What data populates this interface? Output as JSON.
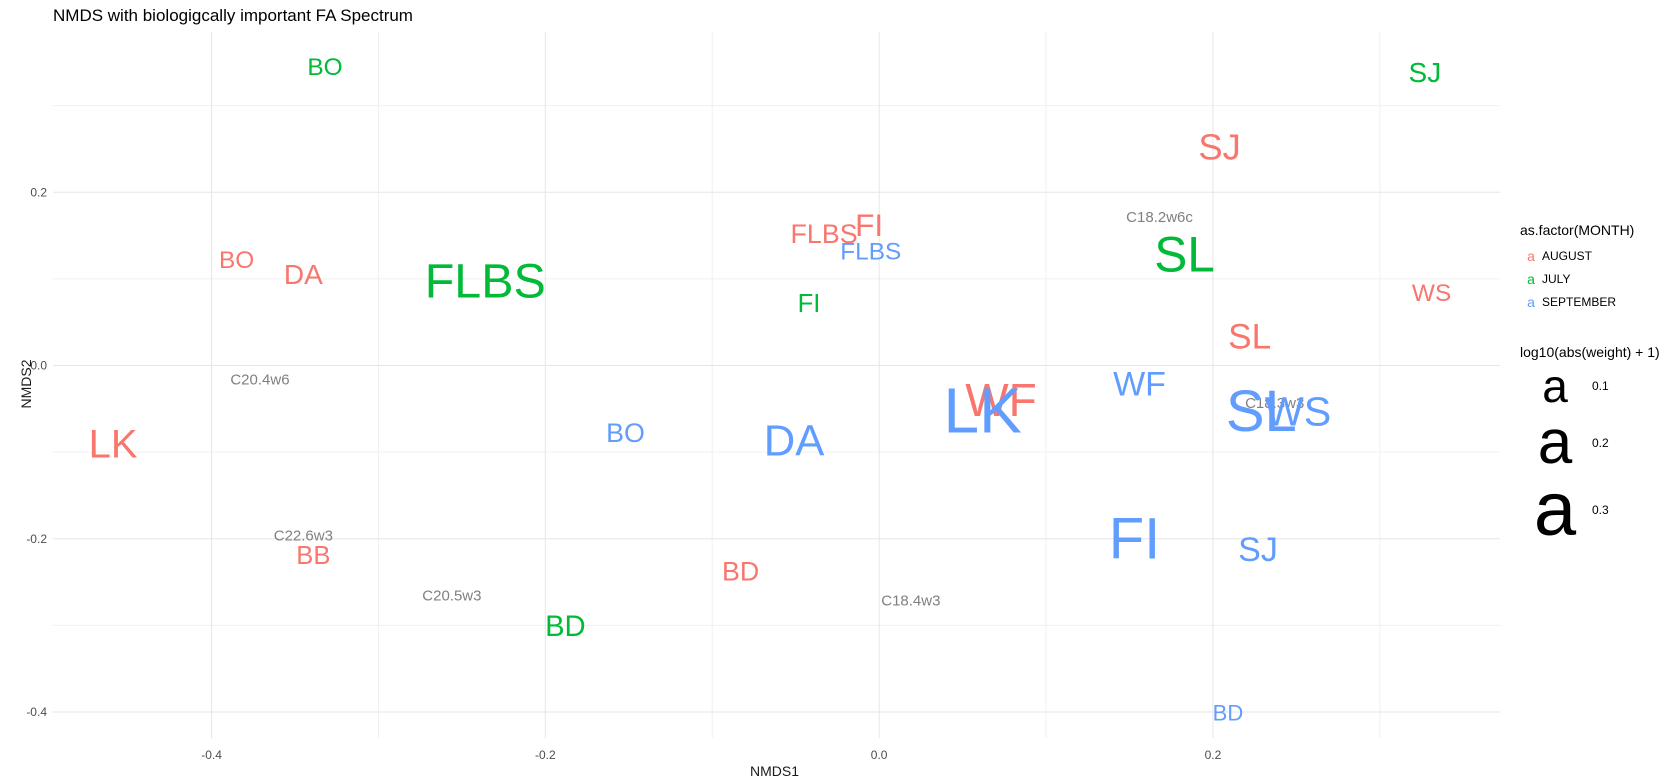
{
  "chart_data": {
    "type": "scatter",
    "title": "NMDS with biologigcally important FA Spectrum",
    "xlabel": "NMDS1",
    "ylabel": "NMDS2",
    "xlim": [
      -0.495,
      0.372
    ],
    "ylim": [
      -0.43,
      0.385
    ],
    "x_ticks": [
      -0.4,
      -0.2,
      0.0,
      0.2
    ],
    "x_tick_labels": [
      "-0.4",
      "-0.2",
      "0.0",
      "0.2"
    ],
    "y_ticks": [
      -0.4,
      -0.2,
      0.0,
      0.2
    ],
    "y_tick_labels": [
      "-0.4",
      "-0.2",
      "0.0",
      "0.2"
    ],
    "x_minor": [
      -0.3,
      -0.1,
      0.1,
      0.3
    ],
    "y_minor": [
      -0.3,
      -0.1,
      0.1,
      0.3
    ],
    "grid": true,
    "legend_position": "right",
    "colors": {
      "AUGUST": "#F8766D",
      "JULY": "#00BA38",
      "SEPTEMBER": "#619CFF",
      "vector": "#808080"
    },
    "series": [
      {
        "name": "AUGUST",
        "points": [
          {
            "label": "LK",
            "x": -0.459,
            "y": -0.091,
            "w": 0.25
          },
          {
            "label": "BO",
            "x": -0.385,
            "y": 0.121,
            "w": 0.12
          },
          {
            "label": "DA",
            "x": -0.345,
            "y": 0.105,
            "w": 0.15
          },
          {
            "label": "BB",
            "x": -0.339,
            "y": -0.22,
            "w": 0.13
          },
          {
            "label": "FLBS",
            "x": -0.033,
            "y": 0.152,
            "w": 0.14
          },
          {
            "label": "FI",
            "x": -0.006,
            "y": 0.162,
            "w": 0.18
          },
          {
            "label": "BD",
            "x": -0.083,
            "y": -0.238,
            "w": 0.14
          },
          {
            "label": "WF",
            "x": 0.073,
            "y": -0.04,
            "w": 0.3
          },
          {
            "label": "SJ",
            "x": 0.204,
            "y": 0.252,
            "w": 0.22
          },
          {
            "label": "SL",
            "x": 0.222,
            "y": 0.033,
            "w": 0.21
          },
          {
            "label": "WS",
            "x": 0.331,
            "y": 0.083,
            "w": 0.12
          }
        ]
      },
      {
        "name": "JULY",
        "points": [
          {
            "label": "BO",
            "x": -0.332,
            "y": 0.344,
            "w": 0.12
          },
          {
            "label": "FLBS",
            "x": -0.236,
            "y": 0.097,
            "w": 0.32
          },
          {
            "label": "FI",
            "x": -0.042,
            "y": 0.071,
            "w": 0.13
          },
          {
            "label": "BD",
            "x": -0.188,
            "y": -0.302,
            "w": 0.16
          },
          {
            "label": "SL",
            "x": 0.183,
            "y": 0.128,
            "w": 0.33
          },
          {
            "label": "SJ",
            "x": 0.327,
            "y": 0.338,
            "w": 0.15
          }
        ]
      },
      {
        "name": "SEPTEMBER",
        "points": [
          {
            "label": "BO",
            "x": -0.152,
            "y": -0.078,
            "w": 0.14
          },
          {
            "label": "DA",
            "x": -0.051,
            "y": -0.088,
            "w": 0.28
          },
          {
            "label": "FLBS",
            "x": -0.005,
            "y": 0.131,
            "w": 0.12
          },
          {
            "label": "LK",
            "x": 0.062,
            "y": -0.052,
            "w": 0.45
          },
          {
            "label": "WF",
            "x": 0.156,
            "y": -0.022,
            "w": 0.2
          },
          {
            "label": "FI",
            "x": 0.153,
            "y": -0.2,
            "w": 0.4
          },
          {
            "label": "SL",
            "x": 0.229,
            "y": -0.053,
            "w": 0.4
          },
          {
            "label": "WS",
            "x": 0.251,
            "y": -0.053,
            "w": 0.26
          },
          {
            "label": "SJ",
            "x": 0.227,
            "y": -0.213,
            "w": 0.2
          },
          {
            "label": "BD",
            "x": 0.209,
            "y": -0.401,
            "w": 0.1
          }
        ]
      }
    ],
    "vectors": [
      {
        "label": "C20.4w6",
        "x": -0.371,
        "y": -0.017
      },
      {
        "label": "C22.6w3",
        "x": -0.345,
        "y": -0.197
      },
      {
        "label": "C20.5w3",
        "x": -0.256,
        "y": -0.266
      },
      {
        "label": "C18.4w3",
        "x": 0.019,
        "y": -0.272
      },
      {
        "label": "C18.2w6c",
        "x": 0.168,
        "y": 0.171
      },
      {
        "label": "C18.3w3",
        "x": 0.237,
        "y": -0.044
      }
    ],
    "legends": {
      "color_title": "as.factor(MONTH)",
      "color_key_glyph": "a",
      "color_items": [
        "AUGUST",
        "JULY",
        "SEPTEMBER"
      ],
      "size_title": "log10(abs(weight) + 1)",
      "size_key_glyph": "a",
      "size_items": [
        {
          "label": "0.1",
          "w": 0.1
        },
        {
          "label": "0.2",
          "w": 0.2
        },
        {
          "label": "0.3",
          "w": 0.3
        }
      ]
    }
  }
}
